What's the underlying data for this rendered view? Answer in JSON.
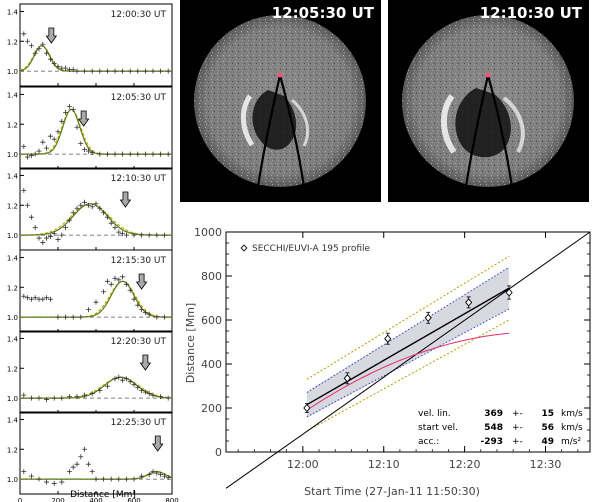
{
  "profiles": {
    "xlabel": "Distance [Mm]",
    "x_ticks": [
      "0",
      "200",
      "400",
      "600",
      "800"
    ],
    "y_ticks": [
      "1.0",
      "1.2",
      "1.4"
    ],
    "panels": [
      {
        "time": "12:00:30 UT",
        "arrow_x": 165,
        "points": [
          [
            20,
            1.25
          ],
          [
            40,
            1.2
          ],
          [
            60,
            1.17
          ],
          [
            80,
            1.12
          ],
          [
            100,
            1.15
          ],
          [
            120,
            1.18
          ],
          [
            140,
            1.12
          ],
          [
            160,
            1.08
          ],
          [
            180,
            1.05
          ],
          [
            200,
            1.03
          ],
          [
            220,
            1.02
          ],
          [
            240,
            1.02
          ],
          [
            260,
            1.01
          ],
          [
            280,
            1.01
          ],
          [
            300,
            1.0
          ],
          [
            340,
            1.0
          ],
          [
            380,
            1.0
          ],
          [
            420,
            1.0
          ],
          [
            460,
            1.0
          ],
          [
            500,
            1.0
          ],
          [
            540,
            1.0
          ],
          [
            580,
            1.0
          ],
          [
            620,
            1.0
          ],
          [
            660,
            1.0
          ],
          [
            700,
            1.0
          ],
          [
            740,
            1.0
          ],
          [
            780,
            1.0
          ]
        ],
        "fit_peak": 115,
        "fit_amp": 0.17,
        "fit_w": 40
      },
      {
        "time": "12:05:30 UT",
        "arrow_x": 335,
        "points": [
          [
            20,
            1.05
          ],
          [
            40,
            0.98
          ],
          [
            60,
            0.99
          ],
          [
            80,
            1.0
          ],
          [
            100,
            1.02
          ],
          [
            120,
            1.08
          ],
          [
            140,
            1.04
          ],
          [
            160,
            1.12
          ],
          [
            180,
            1.1
          ],
          [
            200,
            1.15
          ],
          [
            220,
            1.22
          ],
          [
            240,
            1.28
          ],
          [
            260,
            1.32
          ],
          [
            280,
            1.3
          ],
          [
            300,
            1.18
          ],
          [
            320,
            1.07
          ],
          [
            340,
            1.03
          ],
          [
            360,
            1.02
          ],
          [
            380,
            1.01
          ],
          [
            420,
            1.0
          ],
          [
            460,
            1.0
          ],
          [
            500,
            1.0
          ],
          [
            540,
            1.0
          ],
          [
            580,
            1.0
          ],
          [
            620,
            1.0
          ],
          [
            660,
            1.0
          ],
          [
            700,
            1.0
          ],
          [
            740,
            1.0
          ],
          [
            780,
            1.0
          ]
        ],
        "fit_peak": 270,
        "fit_amp": 0.3,
        "fit_w": 45
      },
      {
        "time": "12:10:30 UT",
        "arrow_x": 555,
        "points": [
          [
            20,
            1.3
          ],
          [
            40,
            1.2
          ],
          [
            60,
            1.12
          ],
          [
            80,
            1.05
          ],
          [
            100,
            0.98
          ],
          [
            120,
            0.95
          ],
          [
            140,
            0.98
          ],
          [
            160,
            0.99
          ],
          [
            180,
            1.01
          ],
          [
            200,
            0.97
          ],
          [
            220,
            1.0
          ],
          [
            240,
            1.05
          ],
          [
            260,
            1.1
          ],
          [
            280,
            1.15
          ],
          [
            300,
            1.18
          ],
          [
            320,
            1.2
          ],
          [
            340,
            1.22
          ],
          [
            360,
            1.2
          ],
          [
            380,
            1.19
          ],
          [
            400,
            1.21
          ],
          [
            420,
            1.18
          ],
          [
            440,
            1.15
          ],
          [
            460,
            1.12
          ],
          [
            480,
            1.08
          ],
          [
            500,
            1.05
          ],
          [
            520,
            1.02
          ],
          [
            540,
            1.01
          ],
          [
            560,
            1.0
          ],
          [
            600,
            1.0
          ],
          [
            640,
            1.0
          ],
          [
            680,
            1.0
          ],
          [
            720,
            1.0
          ],
          [
            760,
            1.0
          ]
        ],
        "fit_peak": 370,
        "fit_amp": 0.21,
        "fit_w": 90
      },
      {
        "time": "12:15:30 UT",
        "arrow_x": 640,
        "points": [
          [
            20,
            1.14
          ],
          [
            40,
            1.13
          ],
          [
            60,
            1.12
          ],
          [
            80,
            1.13
          ],
          [
            100,
            1.12
          ],
          [
            120,
            1.12
          ],
          [
            140,
            1.13
          ],
          [
            160,
            1.12
          ],
          [
            200,
            1.0
          ],
          [
            240,
            1.0
          ],
          [
            280,
            1.0
          ],
          [
            320,
            1.0
          ],
          [
            360,
            1.05
          ],
          [
            400,
            1.1
          ],
          [
            440,
            1.17
          ],
          [
            460,
            1.24
          ],
          [
            480,
            1.22
          ],
          [
            500,
            1.26
          ],
          [
            520,
            1.25
          ],
          [
            540,
            1.27
          ],
          [
            560,
            1.22
          ],
          [
            580,
            1.18
          ],
          [
            600,
            1.12
          ],
          [
            620,
            1.08
          ],
          [
            640,
            1.05
          ],
          [
            660,
            1.03
          ],
          [
            680,
            1.02
          ],
          [
            720,
            1.0
          ],
          [
            760,
            1.0
          ]
        ],
        "fit_peak": 540,
        "fit_amp": 0.24,
        "fit_w": 60
      },
      {
        "time": "12:20:30 UT",
        "arrow_x": 660,
        "points": [
          [
            20,
            1.02
          ],
          [
            60,
            1.0
          ],
          [
            100,
            1.0
          ],
          [
            140,
            0.99
          ],
          [
            180,
            1.0
          ],
          [
            220,
            1.0
          ],
          [
            260,
            1.01
          ],
          [
            300,
            1.01
          ],
          [
            340,
            1.02
          ],
          [
            380,
            1.03
          ],
          [
            420,
            1.05
          ],
          [
            460,
            1.08
          ],
          [
            500,
            1.13
          ],
          [
            520,
            1.14
          ],
          [
            540,
            1.12
          ],
          [
            560,
            1.13
          ],
          [
            580,
            1.11
          ],
          [
            600,
            1.09
          ],
          [
            620,
            1.07
          ],
          [
            640,
            1.05
          ],
          [
            660,
            1.04
          ],
          [
            680,
            1.03
          ],
          [
            700,
            1.02
          ],
          [
            740,
            1.01
          ],
          [
            780,
            1.0
          ]
        ],
        "fit_peak": 530,
        "fit_amp": 0.14,
        "fit_w": 85
      },
      {
        "time": "12:25:30 UT",
        "arrow_x": 725,
        "points": [
          [
            20,
            1.05
          ],
          [
            60,
            1.02
          ],
          [
            100,
            1.0
          ],
          [
            140,
            0.98
          ],
          [
            180,
            0.97
          ],
          [
            220,
            0.98
          ],
          [
            260,
            1.05
          ],
          [
            280,
            1.08
          ],
          [
            300,
            1.1
          ],
          [
            320,
            1.15
          ],
          [
            340,
            1.2
          ],
          [
            360,
            1.1
          ],
          [
            380,
            1.05
          ],
          [
            400,
            1.0
          ],
          [
            440,
            1.0
          ],
          [
            480,
            1.0
          ],
          [
            520,
            1.0
          ],
          [
            560,
            1.0
          ],
          [
            600,
            1.0
          ],
          [
            640,
            1.02
          ],
          [
            680,
            1.03
          ],
          [
            700,
            1.05
          ],
          [
            720,
            1.04
          ],
          [
            740,
            1.03
          ],
          [
            760,
            1.02
          ],
          [
            780,
            1.01
          ]
        ],
        "fit_peak": 720,
        "fit_amp": 0.05,
        "fit_w": 45
      }
    ]
  },
  "images": [
    {
      "time": "12:05:30 UT"
    },
    {
      "time": "12:10:30 UT"
    }
  ],
  "chart_data": {
    "type": "scatter",
    "ylabel": "Distance [Mm]",
    "xlabel": "Start Time (27-Jan-11 11:50:30)",
    "x_ticks": [
      "12:00",
      "12:10",
      "12:20",
      "12:30"
    ],
    "y_ticks": [
      "0",
      "200",
      "400",
      "600",
      "800",
      "1000"
    ],
    "xlim_min_after_start": [
      0,
      45
    ],
    "ylim": [
      0,
      1000
    ],
    "legend": "SECCHI/EUVI-A 195 profile",
    "series": [
      {
        "name": "SECCHI/EUVI-A 195 profile",
        "x_min_after_start": [
          10,
          15,
          20,
          25,
          30,
          35
        ],
        "y": [
          200,
          335,
          515,
          610,
          680,
          725
        ],
        "yerr": [
          20,
          25,
          25,
          25,
          25,
          30
        ]
      }
    ],
    "fit": {
      "labels": [
        "vel. lin.",
        "start vel.",
        "acc.:"
      ],
      "values": [
        "369",
        "548",
        "-293"
      ],
      "pm": "+-",
      "errors": [
        "15",
        "56",
        "49"
      ],
      "units": [
        "km/s",
        "km/s",
        "m/s²"
      ]
    }
  }
}
